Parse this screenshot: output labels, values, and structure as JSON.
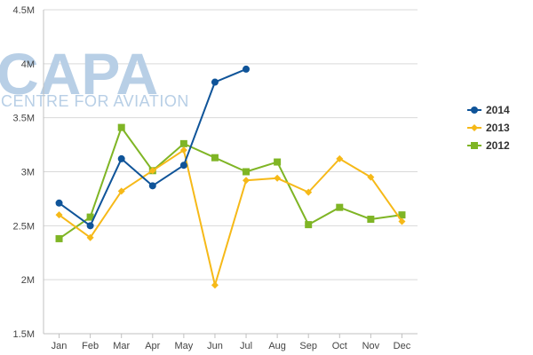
{
  "watermark": {
    "brand": "CAPA",
    "tagline": "CENTRE FOR AVIATION"
  },
  "colors": {
    "grid": "#d9d9d9",
    "axis": "#c0c0c0"
  },
  "chart_data": {
    "type": "line",
    "title": "",
    "xlabel": "",
    "ylabel": "",
    "categories": [
      "Jan",
      "Feb",
      "Mar",
      "Apr",
      "May",
      "Jun",
      "Jul",
      "Aug",
      "Sep",
      "Oct",
      "Nov",
      "Dec"
    ],
    "ylim": [
      1500000,
      4500000
    ],
    "yticks": [
      {
        "value": 1500000,
        "label": "1.5M"
      },
      {
        "value": 2000000,
        "label": "2M"
      },
      {
        "value": 2500000,
        "label": "2.5M"
      },
      {
        "value": 3000000,
        "label": "3M"
      },
      {
        "value": 3500000,
        "label": "3.5M"
      },
      {
        "value": 4000000,
        "label": "4M"
      },
      {
        "value": 4500000,
        "label": "4.5M"
      }
    ],
    "grid": true,
    "legend_position": "right",
    "series": [
      {
        "name": "2014",
        "color": "#0f5499",
        "marker": "circle",
        "values": [
          2710000,
          2500000,
          3120000,
          2870000,
          3060000,
          3830000,
          3950000,
          null,
          null,
          null,
          null,
          null
        ]
      },
      {
        "name": "2013",
        "color": "#f6b918",
        "marker": "diamond",
        "values": [
          2600000,
          2390000,
          2820000,
          3010000,
          3200000,
          1950000,
          2920000,
          2940000,
          2810000,
          3120000,
          2950000,
          2540000
        ]
      },
      {
        "name": "2012",
        "color": "#7fb525",
        "marker": "square",
        "values": [
          2380000,
          2580000,
          3410000,
          3010000,
          3260000,
          3130000,
          3000000,
          3090000,
          2510000,
          2670000,
          2560000,
          2600000
        ]
      }
    ]
  }
}
